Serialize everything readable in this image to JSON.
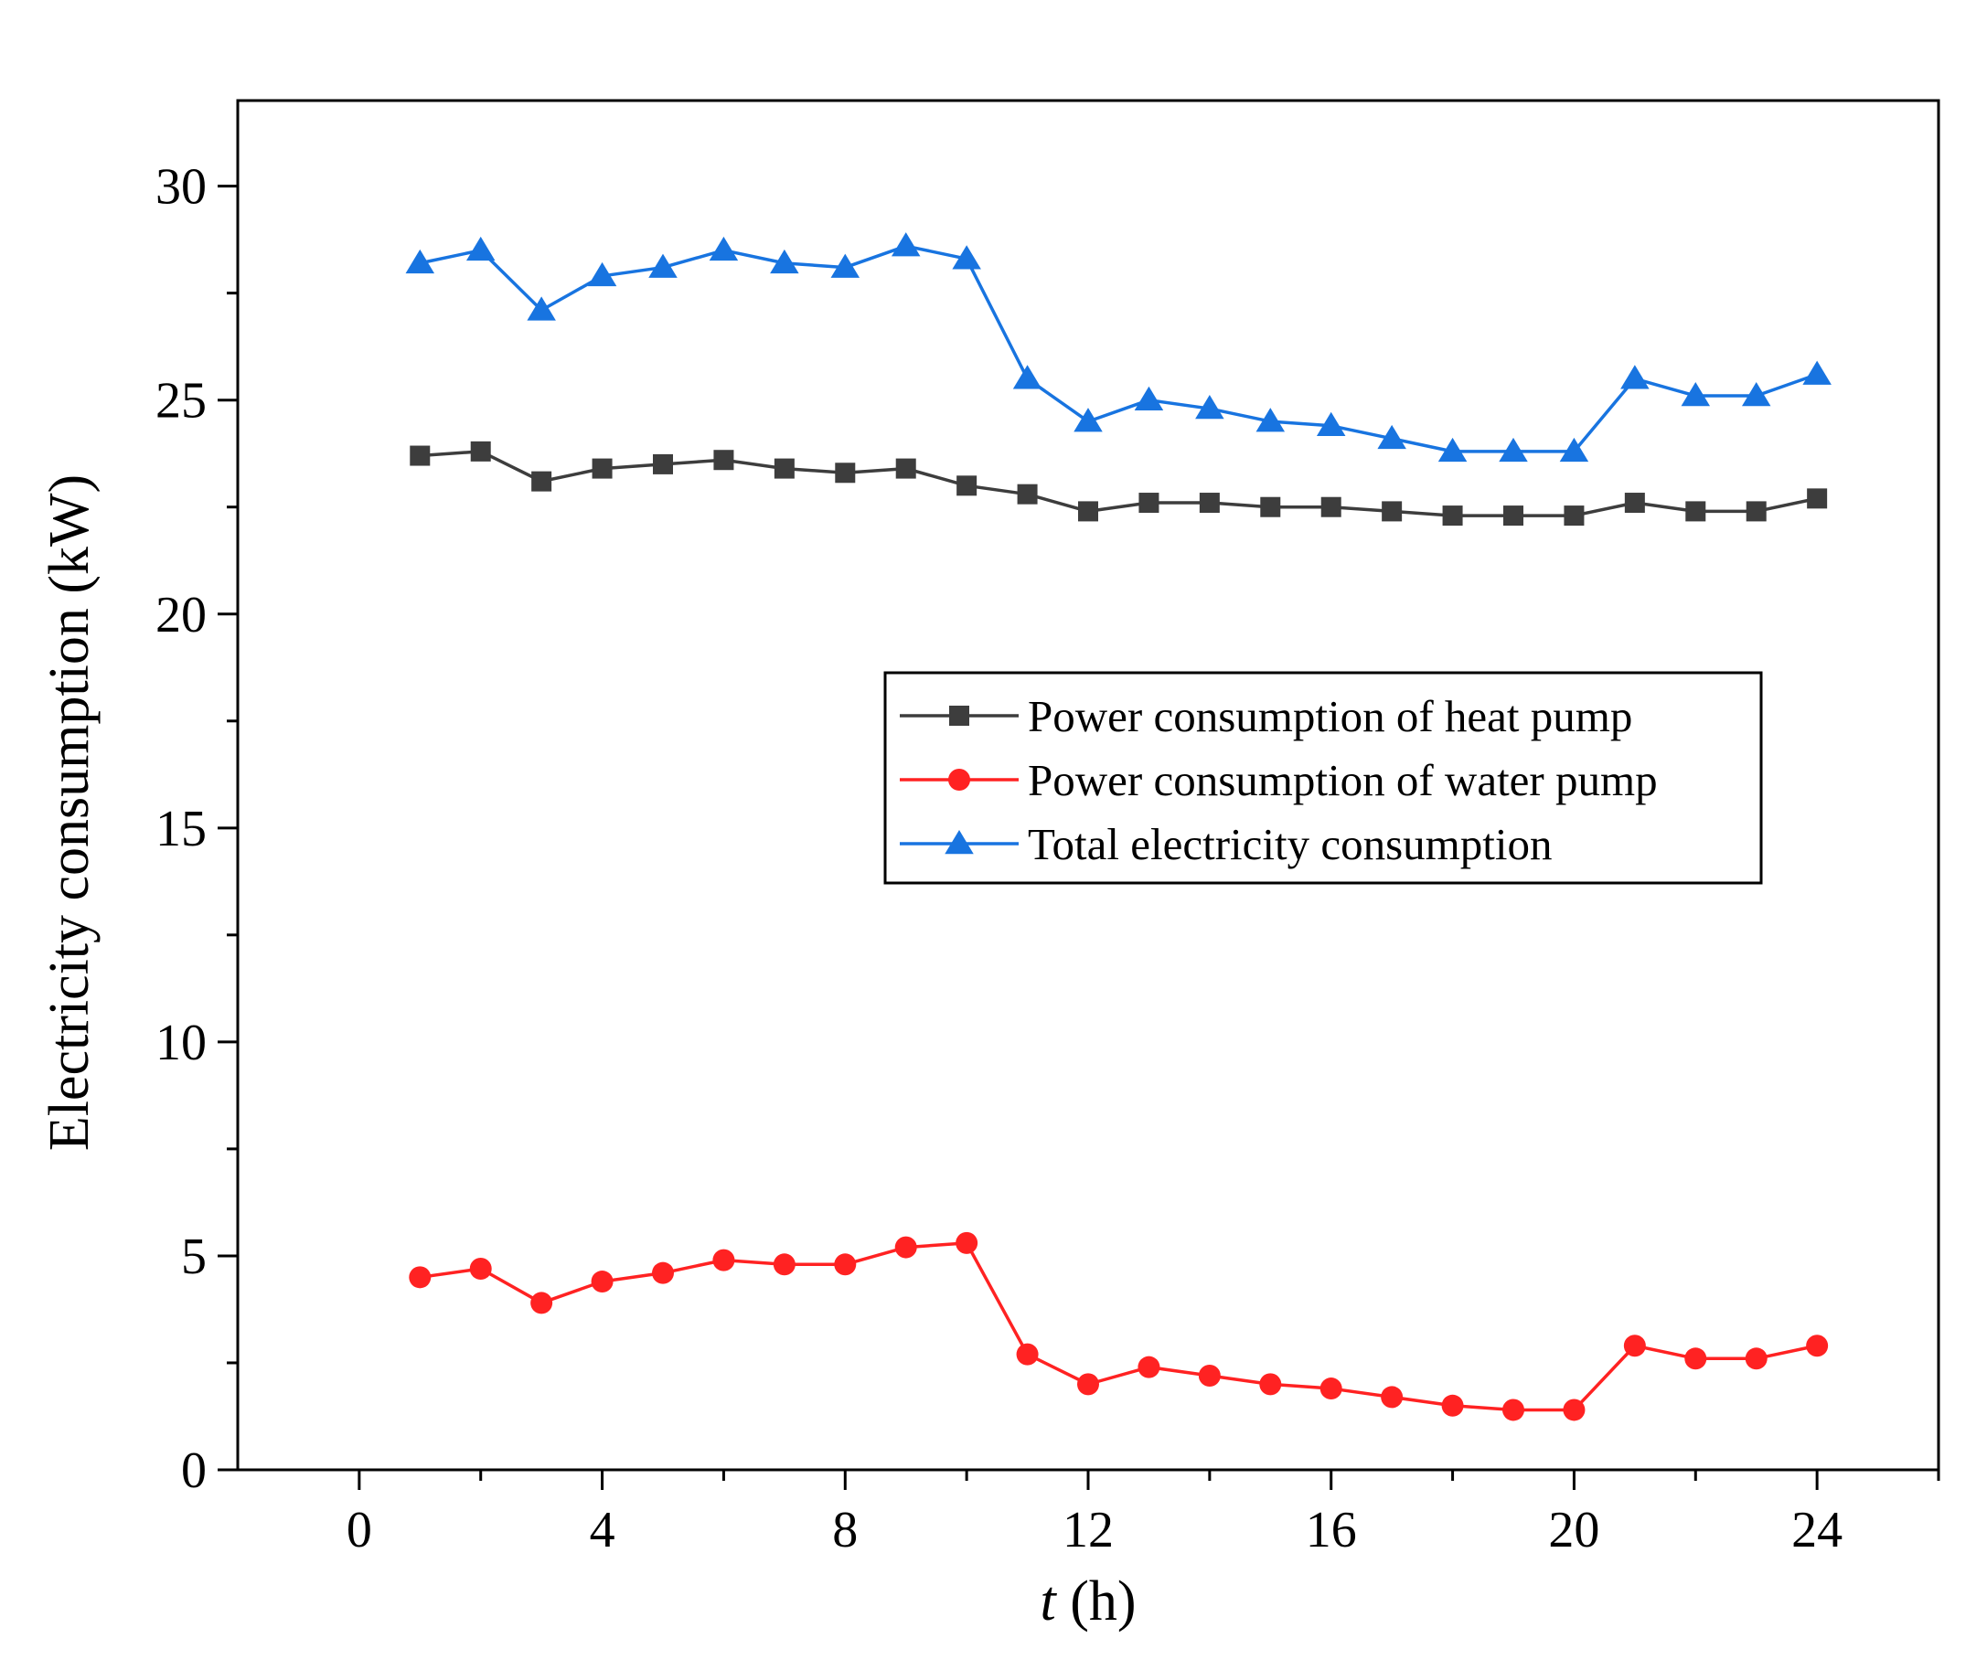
{
  "chart_data": {
    "type": "line",
    "title": "",
    "xlabel": {
      "italic": "t",
      "rest": " (h)"
    },
    "ylabel": "Electricity consumption (kW)",
    "xlim": [
      -2,
      26
    ],
    "ylim": [
      0,
      32
    ],
    "xticks": [
      0,
      4,
      8,
      12,
      16,
      20,
      24
    ],
    "xminor_ticks": [
      2,
      6,
      10,
      14,
      18,
      22,
      26
    ],
    "yticks": [
      0,
      5,
      10,
      15,
      20,
      25,
      30
    ],
    "yminor_ticks": [
      2.5,
      7.5,
      12.5,
      17.5,
      22.5,
      27.5
    ],
    "grid": false,
    "legend_position": "center-right",
    "x": [
      1,
      2,
      3,
      4,
      5,
      6,
      7,
      8,
      9,
      10,
      11,
      12,
      13,
      14,
      15,
      16,
      17,
      18,
      19,
      20,
      21,
      22,
      23,
      24
    ],
    "series": [
      {
        "name": "Power consumption of heat pump",
        "color": "#3d3d3d",
        "marker": "square",
        "values": [
          23.7,
          23.8,
          23.1,
          23.4,
          23.5,
          23.6,
          23.4,
          23.3,
          23.4,
          23.0,
          22.8,
          22.4,
          22.6,
          22.6,
          22.5,
          22.5,
          22.4,
          22.3,
          22.3,
          22.3,
          22.6,
          22.4,
          22.4,
          22.7
        ]
      },
      {
        "name": "Power consumption of water pump",
        "color": "#ff2222",
        "marker": "circle",
        "values": [
          4.5,
          4.7,
          3.9,
          4.4,
          4.6,
          4.9,
          4.8,
          4.8,
          5.2,
          5.3,
          2.7,
          2.0,
          2.4,
          2.2,
          2.0,
          1.9,
          1.7,
          1.5,
          1.4,
          1.4,
          2.9,
          2.6,
          2.6,
          2.9
        ]
      },
      {
        "name": "Total electricity consumption",
        "color": "#1874e0",
        "marker": "triangle",
        "values": [
          28.2,
          28.5,
          27.1,
          27.9,
          28.1,
          28.5,
          28.2,
          28.1,
          28.6,
          28.3,
          25.5,
          24.5,
          25.0,
          24.8,
          24.5,
          24.4,
          24.1,
          23.8,
          23.8,
          23.8,
          25.5,
          25.1,
          25.1,
          25.6
        ]
      }
    ]
  }
}
